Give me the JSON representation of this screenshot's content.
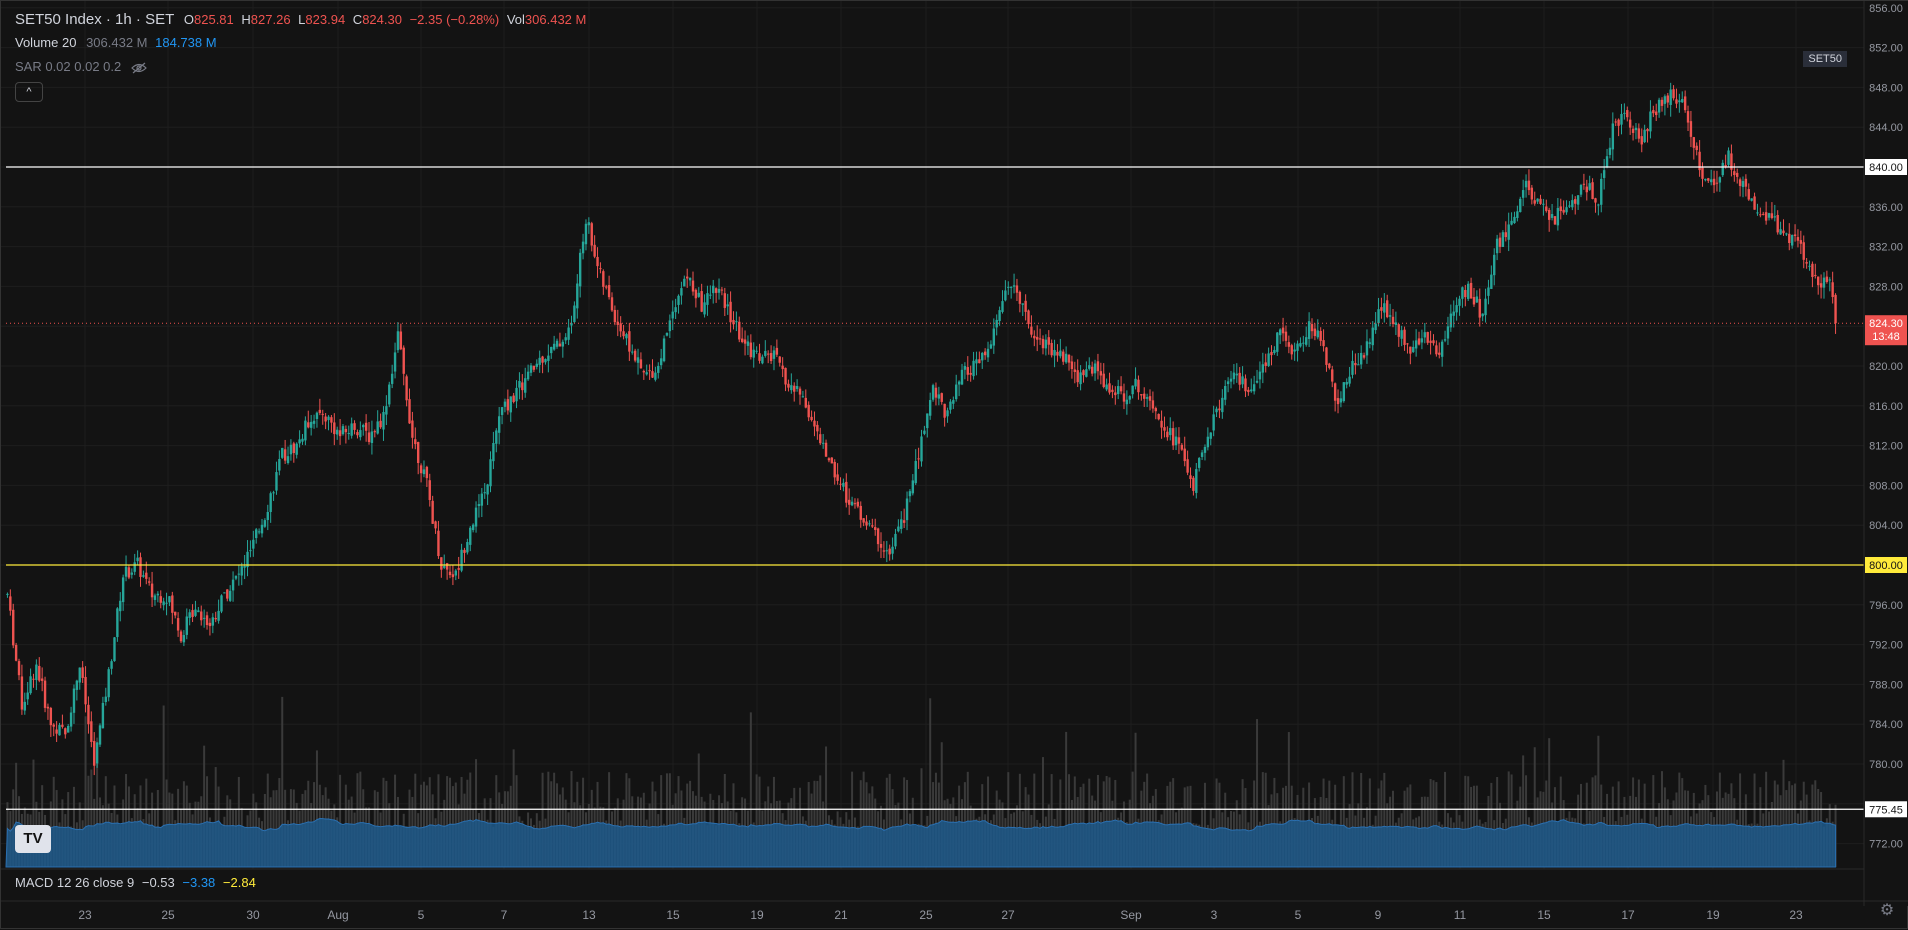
{
  "header": {
    "symbol": "SET50 Index · 1h · SET",
    "ohlc": [
      {
        "key": "O",
        "value": "825.81"
      },
      {
        "key": "H",
        "value": "827.26"
      },
      {
        "key": "L",
        "value": "823.94"
      },
      {
        "key": "C",
        "value": "824.30"
      }
    ],
    "change": "−2.35 (−0.28%)",
    "vol_label": "Vol",
    "vol_value": "306.432 M"
  },
  "volume_indicator": {
    "label": "Volume 20",
    "value1": "306.432 M",
    "value2": "184.738 M"
  },
  "sar_indicator": {
    "label": "SAR 0.02 0.02 0.2"
  },
  "collapse_label": "^",
  "symbol_badge": "SET50",
  "logo_text": "TV",
  "macd": {
    "label": "MACD 12 26 close 9",
    "v1": "−0.53",
    "v2": "−3.38",
    "v3": "−2.84"
  },
  "colors": {
    "up": "#26a69a",
    "down": "#ef5350",
    "bg": "#131313",
    "grid": "#1e1e1e",
    "volume": "#2962ff",
    "level_white": "#ffffff",
    "level_yellow": "#ffeb3b"
  },
  "icons": {
    "eye_off": "eye-off-icon",
    "gear": "gear-icon"
  },
  "chart_data": {
    "type": "candlestick",
    "y_axis": {
      "ticks": [
        "856.00",
        "852.00",
        "848.00",
        "844.00",
        "840.00",
        "836.00",
        "832.00",
        "828.00",
        "824.30",
        "820.00",
        "816.00",
        "812.00",
        "808.00",
        "804.00",
        "800.00",
        "796.00",
        "792.00",
        "788.00",
        "784.00",
        "780.00",
        "775.45",
        "772.00"
      ],
      "range": [
        770,
        857
      ],
      "current_price": "824.30",
      "countdown": "13:48"
    },
    "x_axis": {
      "labels": [
        "23",
        "25",
        "30",
        "Aug",
        "5",
        "7",
        "13",
        "15",
        "19",
        "21",
        "25",
        "27",
        "Sep",
        "3",
        "5",
        "9",
        "11",
        "15",
        "17",
        "19",
        "23"
      ]
    },
    "levels": [
      {
        "value": 840.0,
        "label": "840.00",
        "color": "#ffffff"
      },
      {
        "value": 800.0,
        "label": "800.00",
        "color": "#ffeb3b"
      },
      {
        "value": 775.45,
        "label": "775.45",
        "color": "#ffffff"
      }
    ],
    "path_points": [
      [
        0,
        797
      ],
      [
        5,
        786
      ],
      [
        10,
        790
      ],
      [
        15,
        784
      ],
      [
        20,
        783
      ],
      [
        25,
        790
      ],
      [
        30,
        780
      ],
      [
        35,
        789
      ],
      [
        40,
        799
      ],
      [
        45,
        800
      ],
      [
        50,
        797
      ],
      [
        55,
        797
      ],
      [
        60,
        793
      ],
      [
        65,
        796
      ],
      [
        70,
        794
      ],
      [
        75,
        797
      ],
      [
        80,
        799
      ],
      [
        85,
        802
      ],
      [
        90,
        806
      ],
      [
        95,
        811
      ],
      [
        100,
        812
      ],
      [
        105,
        815
      ],
      [
        110,
        815
      ],
      [
        115,
        813
      ],
      [
        120,
        814
      ],
      [
        125,
        813
      ],
      [
        130,
        815
      ],
      [
        135,
        823
      ],
      [
        140,
        813
      ],
      [
        145,
        808
      ],
      [
        150,
        800
      ],
      [
        155,
        799
      ],
      [
        160,
        804
      ],
      [
        165,
        807
      ],
      [
        170,
        815
      ],
      [
        175,
        817
      ],
      [
        180,
        819
      ],
      [
        185,
        821
      ],
      [
        190,
        822
      ],
      [
        195,
        824
      ],
      [
        200,
        835
      ],
      [
        205,
        829
      ],
      [
        210,
        825
      ],
      [
        215,
        822
      ],
      [
        220,
        819
      ],
      [
        225,
        820
      ],
      [
        230,
        826
      ],
      [
        235,
        829
      ],
      [
        240,
        826
      ],
      [
        245,
        828
      ],
      [
        250,
        825
      ],
      [
        255,
        822
      ],
      [
        260,
        821
      ],
      [
        265,
        821
      ],
      [
        270,
        818
      ],
      [
        275,
        817
      ],
      [
        280,
        813
      ],
      [
        285,
        810
      ],
      [
        290,
        807
      ],
      [
        295,
        805
      ],
      [
        300,
        803
      ],
      [
        305,
        801
      ],
      [
        310,
        805
      ],
      [
        315,
        811
      ],
      [
        320,
        818
      ],
      [
        325,
        815
      ],
      [
        330,
        819
      ],
      [
        335,
        820
      ],
      [
        340,
        822
      ],
      [
        345,
        828
      ],
      [
        350,
        827
      ],
      [
        355,
        823
      ],
      [
        360,
        822
      ],
      [
        365,
        821
      ],
      [
        370,
        819
      ],
      [
        375,
        820
      ],
      [
        380,
        818
      ],
      [
        385,
        817
      ],
      [
        390,
        818
      ],
      [
        395,
        817
      ],
      [
        400,
        814
      ],
      [
        405,
        812
      ],
      [
        410,
        808
      ],
      [
        415,
        813
      ],
      [
        420,
        817
      ],
      [
        425,
        819
      ],
      [
        430,
        817
      ],
      [
        435,
        820
      ],
      [
        440,
        824
      ],
      [
        445,
        821
      ],
      [
        450,
        824
      ],
      [
        455,
        822
      ],
      [
        460,
        816
      ],
      [
        465,
        820
      ],
      [
        470,
        822
      ],
      [
        475,
        826
      ],
      [
        480,
        824
      ],
      [
        485,
        822
      ],
      [
        490,
        823
      ],
      [
        495,
        821
      ],
      [
        500,
        826
      ],
      [
        505,
        828
      ],
      [
        510,
        825
      ],
      [
        515,
        832
      ],
      [
        520,
        834
      ],
      [
        525,
        838
      ],
      [
        530,
        836
      ],
      [
        535,
        835
      ],
      [
        540,
        836
      ],
      [
        545,
        838
      ],
      [
        550,
        837
      ],
      [
        555,
        844
      ],
      [
        560,
        845
      ],
      [
        565,
        843
      ],
      [
        570,
        846
      ],
      [
        575,
        847
      ],
      [
        580,
        846
      ],
      [
        585,
        840
      ],
      [
        590,
        838
      ],
      [
        595,
        841
      ],
      [
        600,
        838
      ],
      [
        605,
        836
      ],
      [
        610,
        835
      ],
      [
        615,
        833
      ],
      [
        620,
        832
      ],
      [
        625,
        829
      ],
      [
        630,
        828
      ],
      [
        632,
        824.3
      ]
    ]
  }
}
